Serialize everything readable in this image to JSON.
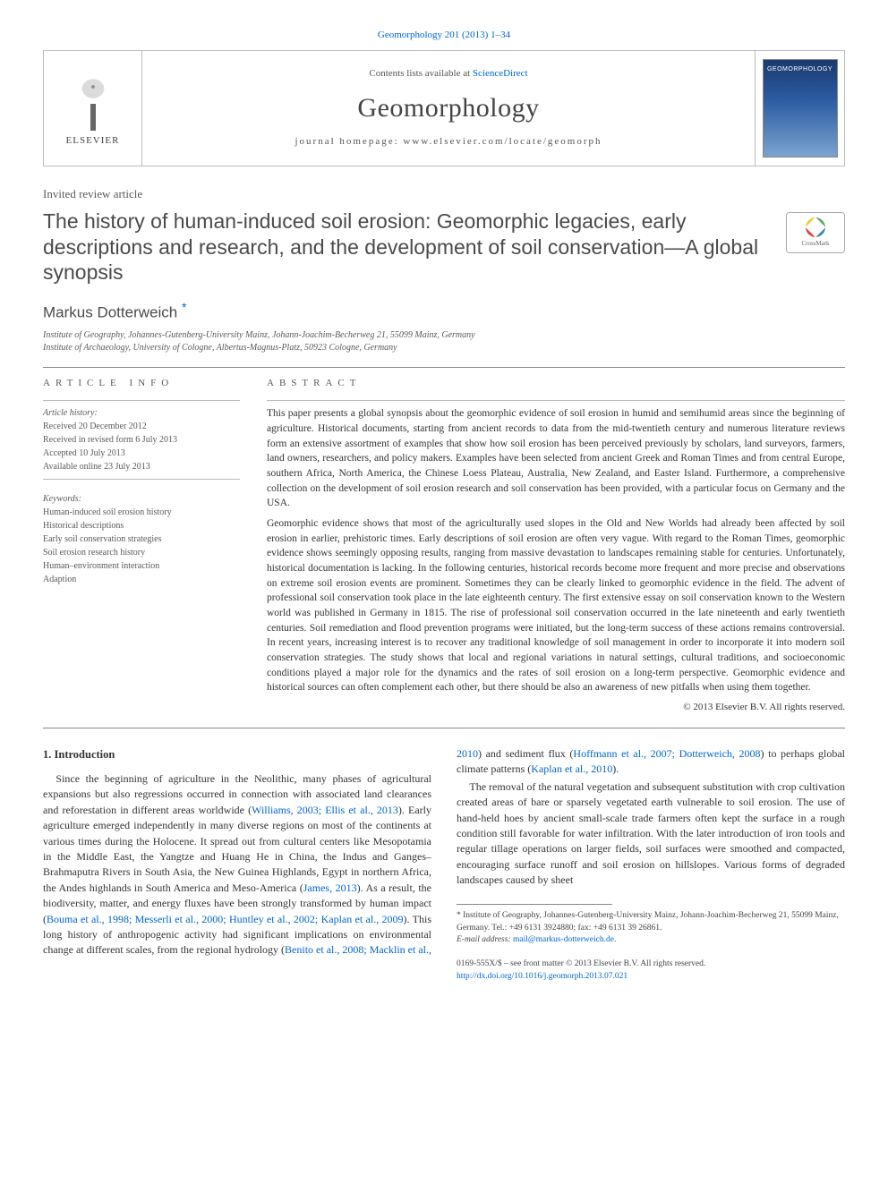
{
  "journal": {
    "citation_line": "Geomorphology 201 (2013) 1–34",
    "contents_line_prefix": "Contents lists available at ",
    "contents_line_link": "ScienceDirect",
    "name": "Geomorphology",
    "homepage_line": "journal homepage: www.elsevier.com/locate/geomorph",
    "publisher_name": "ELSEVIER",
    "cover_label": "GEOMORPHOLOGY"
  },
  "article": {
    "type": "Invited review article",
    "title": "The history of human-induced soil erosion: Geomorphic legacies, early descriptions and research, and the development of soil conservation—A global synopsis",
    "author": "Markus Dotterweich",
    "author_mark": "*",
    "affil1": "Institute of Geography, Johannes-Gutenberg-University Mainz, Johann-Joachim-Becherweg 21, 55099 Mainz, Germany",
    "affil2": "Institute of Archaeology, University of Cologne, Albertus-Magnus-Platz, 50923 Cologne, Germany",
    "crossmark_label": "CrossMark"
  },
  "info": {
    "label": "article info",
    "history_heading": "Article history:",
    "received": "Received 20 December 2012",
    "revised": "Received in revised form 6 July 2013",
    "accepted": "Accepted 10 July 2013",
    "online": "Available online 23 July 2013",
    "keywords_heading": "Keywords:",
    "keywords": [
      "Human-induced soil erosion history",
      "Historical descriptions",
      "Early soil conservation strategies",
      "Soil erosion research history",
      "Human–environment interaction",
      "Adaption"
    ]
  },
  "abstract": {
    "label": "abstract",
    "p1": "This paper presents a global synopsis about the geomorphic evidence of soil erosion in humid and semihumid areas since the beginning of agriculture. Historical documents, starting from ancient records to data from the mid-twentieth century and numerous literature reviews form an extensive assortment of examples that show how soil erosion has been perceived previously by scholars, land surveyors, farmers, land owners, researchers, and policy makers. Examples have been selected from ancient Greek and Roman Times and from central Europe, southern Africa, North America, the Chinese Loess Plateau, Australia, New Zealand, and Easter Island. Furthermore, a comprehensive collection on the development of soil erosion research and soil conservation has been provided, with a particular focus on Germany and the USA.",
    "p2": "Geomorphic evidence shows that most of the agriculturally used slopes in the Old and New Worlds had already been affected by soil erosion in earlier, prehistoric times. Early descriptions of soil erosion are often very vague. With regard to the Roman Times, geomorphic evidence shows seemingly opposing results, ranging from massive devastation to landscapes remaining stable for centuries. Unfortunately, historical documentation is lacking. In the following centuries, historical records become more frequent and more precise and observations on extreme soil erosion events are prominent. Sometimes they can be clearly linked to geomorphic evidence in the field. The advent of professional soil conservation took place in the late eighteenth century. The first extensive essay on soil conservation known to the Western world was published in Germany in 1815. The rise of professional soil conservation occurred in the late nineteenth and early twentieth centuries. Soil remediation and flood prevention programs were initiated, but the long-term success of these actions remains controversial. In recent years, increasing interest is to recover any traditional knowledge of soil management in order to incorporate it into modern soil conservation strategies. The study shows that local and regional variations in natural settings, cultural traditions, and socioeconomic conditions played a major role for the dynamics and the rates of soil erosion on a long-term perspective. Geomorphic evidence and historical sources can often complement each other, but there should be also an awareness of new pitfalls when using them together.",
    "copyright": "© 2013 Elsevier B.V. All rights reserved."
  },
  "body": {
    "heading": "1. Introduction",
    "p1a": "Since the beginning of agriculture in the Neolithic, many phases of agricultural expansions but also regressions occurred in connection with associated land clearances and reforestation in different areas worldwide (",
    "p1_link1": "Williams, 2003; Ellis et al., 2013",
    "p1b": "). Early agriculture emerged independently in many diverse regions on most of the continents at various times during the Holocene. It spread out from cultural centers like Mesopotamia in the Middle East, the Yangtze and Huang He in China, the Indus and Ganges–Brahmaputra Rivers in South Asia, the New Guinea Highlands, Egypt in northern Africa, the Andes highlands in South America and Meso-America (",
    "p1_link2": "James, 2013",
    "p1c": "). As a result, the biodiversity, matter, and energy fluxes have been strongly transformed by human impact (",
    "p1_link3": "Bouma et al., 1998; Messerli et al., 2000; Huntley et al., 2002; Kaplan et al., 2009",
    "p1d": "). This long history of anthropogenic activity had significant implications on environmental change at different scales, from the regional hydrology (",
    "p1_link4": "Benito et al., 2008; Macklin et al., 2010",
    "p1e": ") and sediment flux (",
    "p1_link5": "Hoffmann et al., 2007; Dotterweich, 2008",
    "p1f": ") to perhaps global climate patterns (",
    "p1_link6": "Kaplan et al., 2010",
    "p1g": ").",
    "p2": "The removal of the natural vegetation and subsequent substitution with crop cultivation created areas of bare or sparsely vegetated earth vulnerable to soil erosion. The use of hand-held hoes by ancient small-scale trade farmers often kept the surface in a rough condition still favorable for water infiltration. With the later introduction of iron tools and regular tillage operations on larger fields, soil surfaces were smoothed and compacted, encouraging surface runoff and soil erosion on hillslopes. Various forms of degraded landscapes caused by sheet"
  },
  "footnotes": {
    "corr": "* Institute of Geography, Johannes-Gutenberg-University Mainz, Johann-Joachim-Becherweg 21, 55099 Mainz, Germany. Tel.: +49 6131 3924880; fax: +49 6131 39 26861.",
    "email_label": "E-mail address: ",
    "email": "mail@markus-dotterweich.de",
    "email_suffix": "."
  },
  "bottom": {
    "issn_line": "0169-555X/$ – see front matter © 2013 Elsevier B.V. All rights reserved.",
    "doi": "http://dx.doi.org/10.1016/j.geomorph.2013.07.021"
  },
  "colors": {
    "link": "#0066cc",
    "text": "#333333",
    "muted": "#5a5a5a",
    "rule": "#888888"
  }
}
